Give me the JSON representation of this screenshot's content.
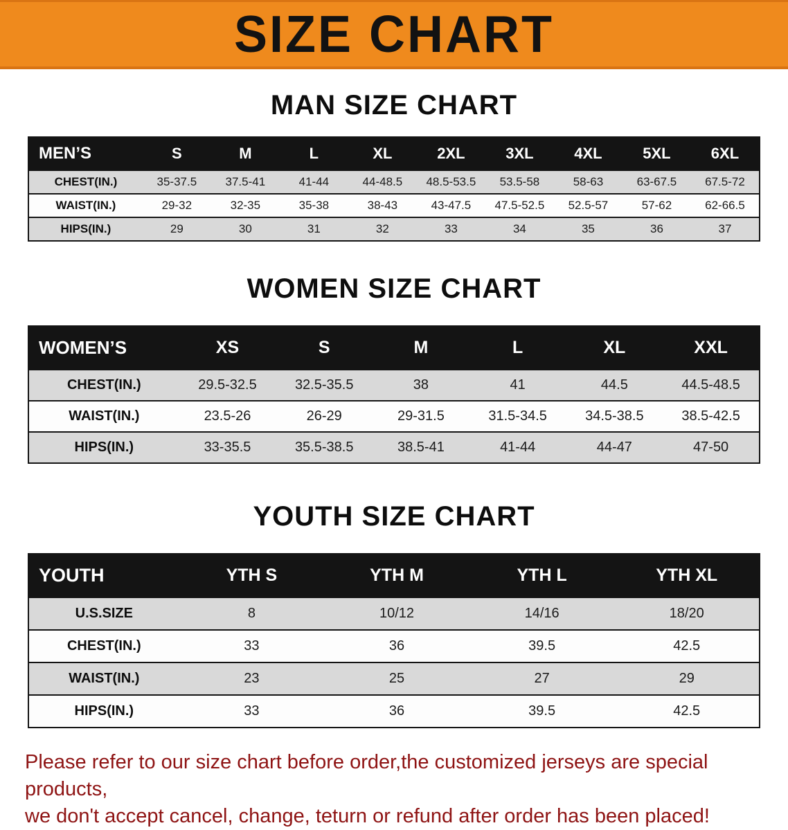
{
  "banner": {
    "title": "SIZE CHART",
    "bg_color": "#ef8a1d"
  },
  "colors": {
    "header_row": "#141414",
    "shaded_row": "#d9d9d9",
    "footer_text": "#8e1313"
  },
  "men": {
    "heading": "MAN SIZE CHART",
    "table": {
      "header": [
        "MEN’S",
        "S",
        "M",
        "L",
        "XL",
        "2XL",
        "3XL",
        "4XL",
        "5XL",
        "6XL"
      ],
      "rows": [
        [
          "CHEST(IN.)",
          "35-37.5",
          "37.5-41",
          "41-44",
          "44-48.5",
          "48.5-53.5",
          "53.5-58",
          "58-63",
          "63-67.5",
          "67.5-72"
        ],
        [
          "WAIST(IN.)",
          "29-32",
          "32-35",
          "35-38",
          "38-43",
          "43-47.5",
          "47.5-52.5",
          "52.5-57",
          "57-62",
          "62-66.5"
        ],
        [
          "HIPS(IN.)",
          "29",
          "30",
          "31",
          "32",
          "33",
          "34",
          "35",
          "36",
          "37"
        ]
      ]
    }
  },
  "women": {
    "heading": "WOMEN SIZE CHART",
    "table": {
      "header": [
        "WOMEN’S",
        "XS",
        "S",
        "M",
        "L",
        "XL",
        "XXL"
      ],
      "rows": [
        [
          "CHEST(IN.)",
          "29.5-32.5",
          "32.5-35.5",
          "38",
          "41",
          "44.5",
          "44.5-48.5"
        ],
        [
          "WAIST(IN.)",
          "23.5-26",
          "26-29",
          "29-31.5",
          "31.5-34.5",
          "34.5-38.5",
          "38.5-42.5"
        ],
        [
          "HIPS(IN.)",
          "33-35.5",
          "35.5-38.5",
          "38.5-41",
          "41-44",
          "44-47",
          "47-50"
        ]
      ]
    }
  },
  "youth": {
    "heading": "YOUTH SIZE CHART",
    "table": {
      "header": [
        "YOUTH",
        "YTH S",
        "YTH M",
        "YTH L",
        "YTH XL"
      ],
      "rows": [
        [
          "U.S.SIZE",
          "8",
          "10/12",
          "14/16",
          "18/20"
        ],
        [
          "CHEST(IN.)",
          "33",
          "36",
          "39.5",
          "42.5"
        ],
        [
          "WAIST(IN.)",
          "23",
          "25",
          "27",
          "29"
        ],
        [
          "HIPS(IN.)",
          "33",
          "36",
          "39.5",
          "42.5"
        ]
      ]
    }
  },
  "footer": {
    "line1": "Please refer to our size chart before order,the customized jerseys are special products,",
    "line2": "we don't accept cancel, change, teturn or refund after order has been placed!"
  }
}
